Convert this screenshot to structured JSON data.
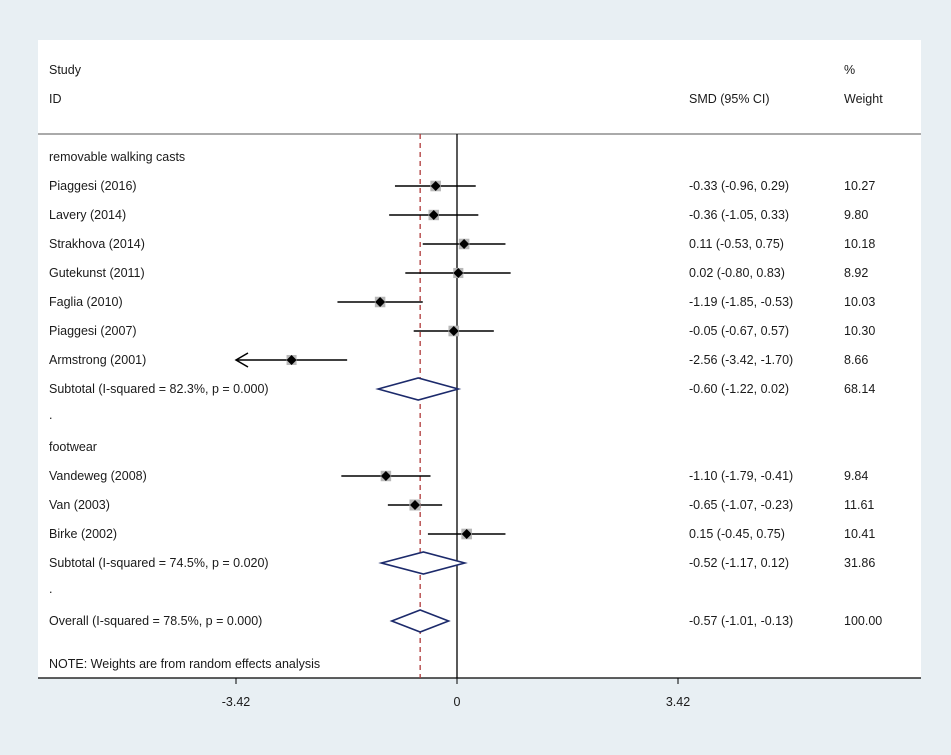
{
  "chart_data": {
    "type": "forest",
    "headers": {
      "study_line1": "Study",
      "study_line2": "ID",
      "effect": "SMD (95% CI)",
      "weight_line1": "%",
      "weight_line2": "Weight"
    },
    "groups": [
      {
        "name": "removable walking casts",
        "studies": [
          {
            "label": "Piaggesi (2016)",
            "smd": -0.33,
            "lower": -0.96,
            "upper": 0.29,
            "ci_text": "-0.33 (-0.96, 0.29)",
            "weight": "10.27"
          },
          {
            "label": "Lavery (2014)",
            "smd": -0.36,
            "lower": -1.05,
            "upper": 0.33,
            "ci_text": "-0.36 (-1.05, 0.33)",
            "weight": "9.80"
          },
          {
            "label": "Strakhova (2014)",
            "smd": 0.11,
            "lower": -0.53,
            "upper": 0.75,
            "ci_text": "0.11 (-0.53, 0.75)",
            "weight": "10.18"
          },
          {
            "label": "Gutekunst (2011)",
            "smd": 0.02,
            "lower": -0.8,
            "upper": 0.83,
            "ci_text": "0.02 (-0.80, 0.83)",
            "weight": "8.92"
          },
          {
            "label": "Faglia (2010)",
            "smd": -1.19,
            "lower": -1.85,
            "upper": -0.53,
            "ci_text": "-1.19 (-1.85, -0.53)",
            "weight": "10.03"
          },
          {
            "label": "Piaggesi (2007)",
            "smd": -0.05,
            "lower": -0.67,
            "upper": 0.57,
            "ci_text": "-0.05 (-0.67, 0.57)",
            "weight": "10.30"
          },
          {
            "label": "Armstrong (2001)",
            "smd": -2.56,
            "lower": -3.42,
            "upper": -1.7,
            "ci_text": "-2.56 (-3.42, -1.70)",
            "weight": "8.66",
            "arrow_left": true
          }
        ],
        "subtotal": {
          "label": "Subtotal  (I-squared = 82.3%, p = 0.000)",
          "smd": -0.6,
          "lower": -1.22,
          "upper": 0.02,
          "ci_text": "-0.60 (-1.22, 0.02)",
          "weight": "68.14"
        }
      },
      {
        "name": "footwear",
        "studies": [
          {
            "label": "Vandeweg (2008)",
            "smd": -1.1,
            "lower": -1.79,
            "upper": -0.41,
            "ci_text": "-1.10 (-1.79, -0.41)",
            "weight": "9.84"
          },
          {
            "label": "Van (2003)",
            "smd": -0.65,
            "lower": -1.07,
            "upper": -0.23,
            "ci_text": "-0.65 (-1.07, -0.23)",
            "weight": "11.61"
          },
          {
            "label": "Birke (2002)",
            "smd": 0.15,
            "lower": -0.45,
            "upper": 0.75,
            "ci_text": "0.15 (-0.45, 0.75)",
            "weight": "10.41"
          }
        ],
        "subtotal": {
          "label": "Subtotal  (I-squared = 74.5%, p = 0.020)",
          "smd": -0.52,
          "lower": -1.17,
          "upper": 0.12,
          "ci_text": "-0.52 (-1.17, 0.12)",
          "weight": "31.86"
        }
      }
    ],
    "overall": {
      "label": "Overall  (I-squared = 78.5%, p = 0.000)",
      "smd": -0.57,
      "lower": -1.01,
      "upper": -0.13,
      "ci_text": "-0.57 (-1.01, -0.13)",
      "weight": "100.00"
    },
    "separator_dot": ".",
    "note": "NOTE: Weights are from random effects analysis",
    "x_axis": {
      "min": -3.42,
      "max": 3.42,
      "ticks": [
        -3.42,
        0,
        3.42
      ],
      "tick_labels": [
        "-3.42",
        "0",
        "3.42"
      ],
      "null_line": 0
    },
    "colors": {
      "marker": "#000000",
      "box": "#b8b8b8",
      "diamond": "#1c2a6b",
      "overall_line": "#b03a3a",
      "axis": "#000000"
    }
  }
}
